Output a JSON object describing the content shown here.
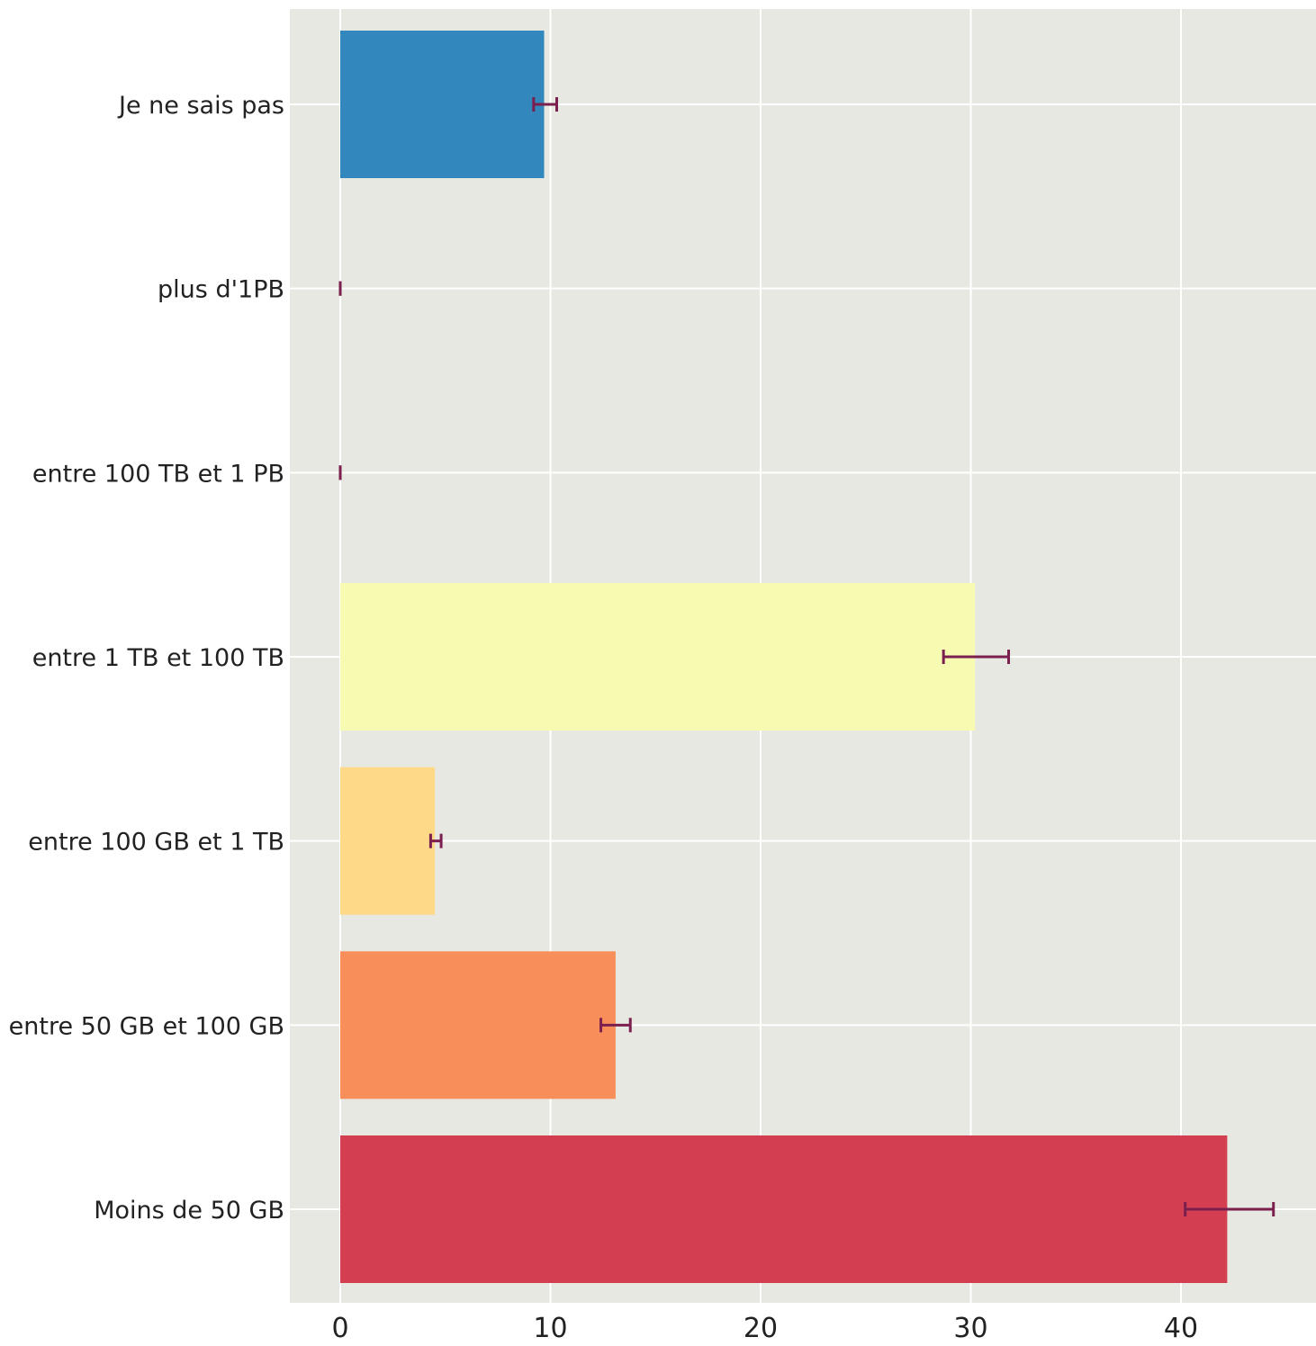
{
  "chart_data": {
    "type": "bar",
    "orientation": "horizontal",
    "title": "",
    "xlabel": "",
    "ylabel": "",
    "categories": [
      "Je ne sais pas",
      "plus d'1PB",
      "entre 100 TB et 1 PB",
      "entre 1 TB et 100 TB",
      "entre 100 GB et 1 TB",
      "entre 50 GB et 100 GB",
      "Moins de 50 GB"
    ],
    "values": [
      9.7,
      0,
      0,
      30.2,
      4.5,
      13.1,
      42.2
    ],
    "error_bars": [
      [
        9.2,
        10.3
      ],
      [
        0,
        0
      ],
      [
        0,
        0
      ],
      [
        28.7,
        31.8
      ],
      [
        4.3,
        4.8
      ],
      [
        12.4,
        13.8
      ],
      [
        40.2,
        44.4
      ]
    ],
    "bar_colors": [
      "#3288bd",
      "#e6f598",
      "#fee08b",
      "#f7fbb1",
      "#fed987",
      "#f88e59",
      "#d33f50"
    ],
    "error_bar_color": "#7b1f4f",
    "background_color": "#e8e8e2",
    "grid_color": "#ffffff",
    "xlim": [
      -2.4,
      46.4
    ],
    "xticks": [
      0,
      10,
      20,
      30,
      40
    ],
    "grid": true,
    "legend": "none"
  }
}
